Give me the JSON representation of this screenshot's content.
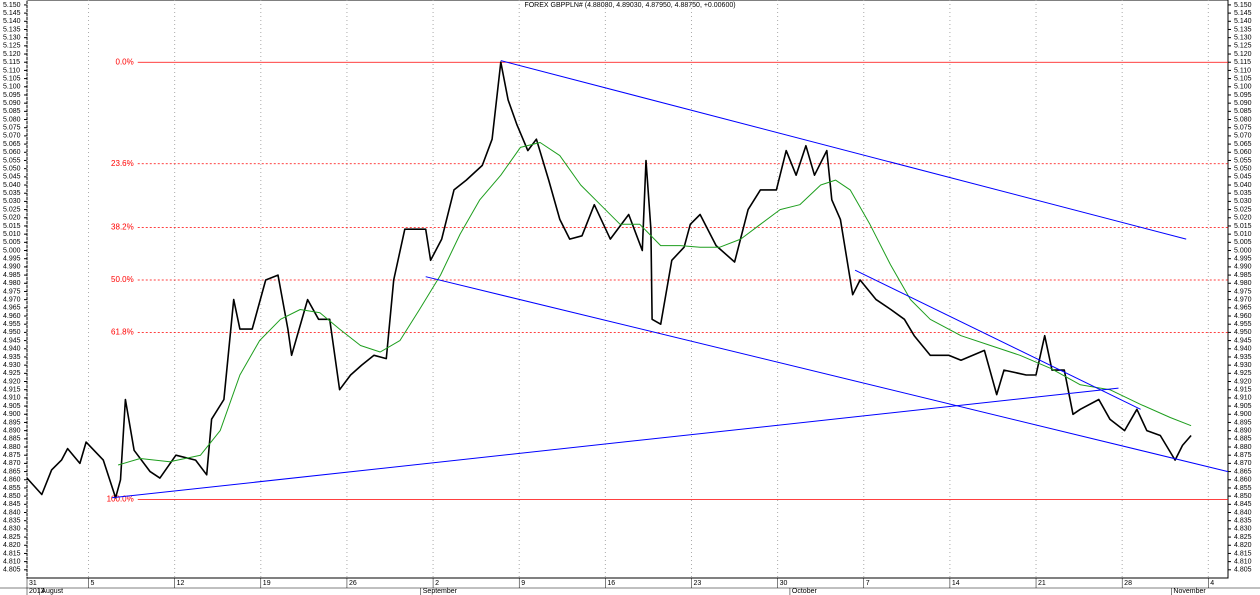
{
  "chart_data": {
    "type": "line",
    "title": "FOREX GBPPLN# (4.88080, 4.89030, 4.87950, 4.88750, +0.00600)",
    "xlim": [
      0,
      97.6
    ],
    "ylim": [
      4.8,
      5.153
    ],
    "grid": "x",
    "xticks": [
      {
        "value": 0,
        "label": "31"
      },
      5,
      12,
      19,
      26,
      {
        "value": 33,
        "label": "2"
      },
      {
        "value": 40,
        "label": "9"
      },
      {
        "value": 47,
        "label": "16"
      },
      {
        "value": 54,
        "label": "23"
      },
      {
        "value": 61,
        "label": "30"
      },
      {
        "value": 68,
        "label": "7"
      },
      {
        "value": 75,
        "label": "14"
      },
      {
        "value": 82,
        "label": "21"
      },
      {
        "value": 89,
        "label": "28"
      },
      {
        "value": 96,
        "label": "4"
      }
    ],
    "period_labels": [
      {
        "value": 0,
        "label": "2013"
      },
      {
        "value": 1,
        "label": "August"
      },
      {
        "value": 32,
        "label": "September"
      },
      {
        "value": 62,
        "label": "October"
      },
      {
        "value": 93,
        "label": "November"
      }
    ],
    "yticks": [
      4.805,
      {
        "value": 4.81,
        "label": "4.810"
      },
      4.815,
      {
        "value": 4.82,
        "label": "4.820"
      },
      4.825,
      {
        "value": 4.83,
        "label": "4.830"
      },
      4.835,
      {
        "value": 4.84,
        "label": "4.840"
      },
      4.845,
      {
        "value": 4.85,
        "label": "4.850"
      },
      4.855,
      {
        "value": 4.86,
        "label": "4.860"
      },
      4.865,
      {
        "value": 4.87,
        "label": "4.870"
      },
      4.875,
      {
        "value": 4.88,
        "label": "4.880"
      },
      4.885,
      {
        "value": 4.89,
        "label": "4.890"
      },
      4.895,
      {
        "value": 4.9,
        "label": "4.900"
      },
      4.905,
      {
        "value": 4.91,
        "label": "4.910"
      },
      4.915,
      {
        "value": 4.92,
        "label": "4.920"
      },
      4.925,
      {
        "value": 4.93,
        "label": "4.930"
      },
      4.935,
      {
        "value": 4.94,
        "label": "4.940"
      },
      4.945,
      {
        "value": 4.95,
        "label": "4.950"
      },
      4.955,
      {
        "value": 4.96,
        "label": "4.960"
      },
      4.965,
      {
        "value": 4.97,
        "label": "4.970"
      },
      4.975,
      {
        "value": 4.98,
        "label": "4.980"
      },
      4.985,
      {
        "value": 4.99,
        "label": "4.990"
      },
      4.995,
      {
        "value": 5,
        "label": "5.000"
      },
      5.005,
      {
        "value": 5.01,
        "label": "5.010"
      },
      5.015,
      {
        "value": 5.02,
        "label": "5.020"
      },
      5.025,
      {
        "value": 5.03,
        "label": "5.030"
      },
      5.035,
      {
        "value": 5.04,
        "label": "5.040"
      },
      5.045,
      {
        "value": 5.05,
        "label": "5.050"
      },
      5.055,
      {
        "value": 5.06,
        "label": "5.060"
      },
      5.065,
      {
        "value": 5.07,
        "label": "5.070"
      },
      5.075,
      {
        "value": 5.08,
        "label": "5.080"
      },
      5.085,
      {
        "value": 5.09,
        "label": "5.090"
      },
      5.095,
      {
        "value": 5.1,
        "label": "5.100"
      },
      5.105,
      {
        "value": 5.11,
        "label": "5.110"
      },
      5.115,
      {
        "value": 5.12,
        "label": "5.120"
      },
      5.125,
      {
        "value": 5.13,
        "label": "5.130"
      },
      5.135,
      {
        "value": 5.14,
        "label": "5.140"
      },
      5.145,
      {
        "value": 5.15,
        "label": "5.150"
      }
    ],
    "levels_color": "#ff0000",
    "levels_start": 9.0,
    "levels": [
      {
        "name": "0.0%",
        "value": 5.115,
        "style": "solid"
      },
      {
        "name": "23.6%",
        "value": 5.053,
        "style": "dashed"
      },
      {
        "name": "38.2%",
        "value": 5.014,
        "style": "dashed"
      },
      {
        "name": "50.0%",
        "value": 4.982,
        "style": "dashed"
      },
      {
        "name": "61.8%",
        "value": 4.95,
        "style": "dashed"
      },
      {
        "name": "100.0%",
        "value": 4.848,
        "style": "solid"
      }
    ],
    "series": [
      {
        "color": "#000000",
        "width": 1.6,
        "x": [
          0.0,
          1.2,
          2.0,
          2.8,
          3.3,
          4.3,
          4.8,
          6.2,
          7.2,
          7.6,
          8.0,
          8.7,
          10.0,
          10.8,
          12.1,
          13.7,
          14.6,
          15.0,
          16.0,
          16.8,
          17.3,
          18.3,
          19.4,
          20.4,
          21.2,
          21.5,
          22.8,
          23.7,
          24.6,
          25.4,
          26.3,
          27.2,
          28.2,
          29.2,
          29.8,
          30.7,
          31.5,
          32.4,
          32.8,
          33.7,
          34.7,
          35.7,
          37.0,
          37.8,
          38.5,
          39.1,
          39.8,
          40.7,
          41.4,
          42.4,
          43.3,
          44.1,
          45.1,
          46.1,
          47.4,
          48.9,
          50.0,
          50.3,
          50.7,
          50.8,
          51.5,
          52.4,
          53.4,
          53.9,
          54.7,
          56.0,
          57.5,
          58.6,
          59.6,
          60.9,
          61.7,
          62.5,
          63.3,
          64.0,
          65.0,
          65.4,
          66.1,
          67.1,
          67.7,
          69.0,
          70.2,
          71.3,
          72.1,
          73.4,
          74.9,
          75.9,
          77.8,
          78.8,
          79.4,
          81.2,
          82.0,
          82.7,
          83.3,
          84.3,
          85.0,
          85.6,
          87.1,
          88.0,
          89.2,
          90.2,
          91.0,
          92.1,
          93.3,
          93.9,
          94.6
        ],
        "values": [
          4.861,
          4.851,
          4.866,
          4.872,
          4.879,
          4.87,
          4.883,
          4.872,
          4.849,
          4.86,
          4.909,
          4.878,
          4.865,
          4.861,
          4.875,
          4.872,
          4.863,
          4.897,
          4.909,
          4.97,
          4.952,
          4.952,
          4.982,
          4.985,
          4.952,
          4.936,
          4.97,
          4.958,
          4.958,
          4.915,
          4.924,
          4.93,
          4.936,
          4.934,
          4.982,
          5.013,
          5.013,
          5.013,
          4.994,
          5.007,
          5.037,
          5.043,
          5.052,
          5.068,
          5.115,
          5.092,
          5.077,
          5.061,
          5.068,
          5.043,
          5.019,
          5.007,
          5.009,
          5.028,
          5.007,
          5.022,
          5.0,
          5.055,
          5.013,
          4.958,
          4.955,
          4.994,
          5.002,
          5.016,
          5.022,
          5.003,
          4.993,
          5.025,
          5.037,
          5.037,
          5.061,
          5.046,
          5.064,
          5.046,
          5.061,
          5.031,
          5.019,
          4.973,
          4.982,
          4.97,
          4.964,
          4.958,
          4.948,
          4.936,
          4.936,
          4.933,
          4.939,
          4.912,
          4.927,
          4.924,
          4.924,
          4.948,
          4.927,
          4.927,
          4.9,
          4.903,
          4.909,
          4.897,
          4.89,
          4.903,
          4.89,
          4.887,
          4.872,
          4.881,
          4.887
        ]
      },
      {
        "color": "#1e9e1e",
        "width": 1,
        "x": [
          7.4,
          9.2,
          11.6,
          14.1,
          15.7,
          17.3,
          18.9,
          20.6,
          22.2,
          23.8,
          25.4,
          27.1,
          28.7,
          30.3,
          31.9,
          33.6,
          35.2,
          36.8,
          38.5,
          40.1,
          41.7,
          43.3,
          45.0,
          46.6,
          48.2,
          49.8,
          51.5,
          53.1,
          54.7,
          56.3,
          58.0,
          59.6,
          61.2,
          62.8,
          64.5,
          65.7,
          66.9,
          68.5,
          70.2,
          71.8,
          73.4,
          75.9,
          78.3,
          80.7,
          83.2,
          85.6,
          88.0,
          90.5,
          92.9,
          94.6
        ],
        "values": [
          4.869,
          4.873,
          4.871,
          4.875,
          4.89,
          4.924,
          4.945,
          4.958,
          4.964,
          4.962,
          4.952,
          4.942,
          4.938,
          4.945,
          4.964,
          4.985,
          5.01,
          5.031,
          5.046,
          5.063,
          5.066,
          5.058,
          5.04,
          5.028,
          5.016,
          5.016,
          5.003,
          5.003,
          5.002,
          5.002,
          5.007,
          5.016,
          5.025,
          5.028,
          5.04,
          5.043,
          5.037,
          5.016,
          4.991,
          4.97,
          4.958,
          4.948,
          4.942,
          4.936,
          4.928,
          4.918,
          4.915,
          4.906,
          4.898,
          4.893
        ]
      },
      {
        "color": "#0000ff",
        "width": 1,
        "x": [
          38.5,
          94.2
        ],
        "values": [
          5.116,
          5.007
        ]
      },
      {
        "color": "#0000ff",
        "width": 1,
        "x": [
          32.4,
          97.6
        ],
        "values": [
          4.984,
          4.865
        ]
      },
      {
        "color": "#0000ff",
        "width": 1,
        "x": [
          6.9,
          88.7
        ],
        "values": [
          4.849,
          4.916
        ]
      },
      {
        "color": "#0000ff",
        "width": 1,
        "x": [
          67.3,
          90.5
        ],
        "values": [
          4.988,
          4.903
        ]
      }
    ]
  }
}
